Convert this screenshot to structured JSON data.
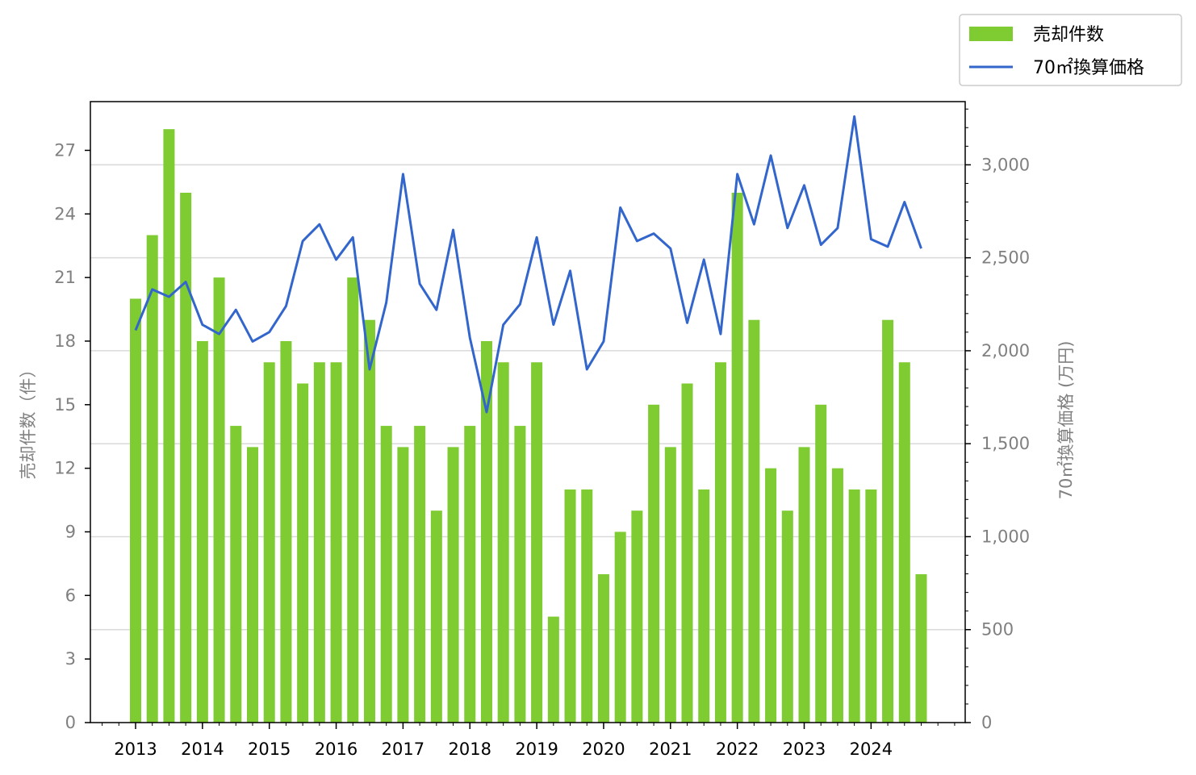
{
  "chart_data": {
    "type": "bar+line",
    "x_tick_labels": [
      "2013",
      "2014",
      "2015",
      "2016",
      "2017",
      "2018",
      "2019",
      "2020",
      "2021",
      "2022",
      "2023",
      "2024"
    ],
    "quarters_per_year": 4,
    "left_axis": {
      "label": "売却件数（件）",
      "ylim": [
        0,
        29.3
      ],
      "ticks": [
        0,
        3,
        6,
        9,
        12,
        15,
        18,
        21,
        24,
        27
      ]
    },
    "right_axis": {
      "label": "70㎡換算価格 (万円)",
      "ylim": [
        0,
        3340
      ],
      "ticks": [
        0,
        500,
        1000,
        1500,
        2000,
        2500,
        3000
      ],
      "tick_labels": [
        "0",
        "500",
        "1,000",
        "1,500",
        "2,000",
        "2,500",
        "3,000"
      ]
    },
    "series": [
      {
        "name": "売却件数",
        "type": "bar",
        "axis": "left",
        "color": "#7fcb32",
        "values": [
          20,
          23,
          28,
          25,
          18,
          21,
          14,
          13,
          17,
          18,
          16,
          17,
          17,
          21,
          19,
          14,
          13,
          14,
          10,
          13,
          14,
          18,
          17,
          14,
          17,
          5,
          11,
          11,
          7,
          9,
          10,
          15,
          13,
          16,
          11,
          17,
          25,
          19,
          12,
          10,
          13,
          15,
          12,
          11,
          11,
          19,
          17,
          7
        ]
      },
      {
        "name": "70㎡換算価格",
        "type": "line",
        "axis": "right",
        "color": "#3366cc",
        "values": [
          2110,
          2330,
          2290,
          2370,
          2140,
          2090,
          2220,
          2050,
          2100,
          2240,
          2590,
          2680,
          2490,
          2610,
          1900,
          2260,
          2950,
          2360,
          2220,
          2650,
          2070,
          1670,
          2140,
          2250,
          2610,
          2140,
          2430,
          1900,
          2050,
          2770,
          2590,
          2630,
          2550,
          2150,
          2490,
          2090,
          2950,
          2680,
          3050,
          2660,
          2890,
          2570,
          2660,
          3260,
          2600,
          2560,
          2800,
          2550
        ]
      }
    ],
    "grid": "right-axis horizontal",
    "legend_position": "top-right outside"
  },
  "legend": {
    "bar_label": "売却件数",
    "line_label": "70㎡換算価格"
  },
  "colors": {
    "bar": "#7fcb32",
    "line": "#3366cc",
    "grid": "#d9d9d9",
    "tick_text_left": "#808080",
    "tick_text_right": "#808080",
    "tick_text_x": "#000000"
  }
}
